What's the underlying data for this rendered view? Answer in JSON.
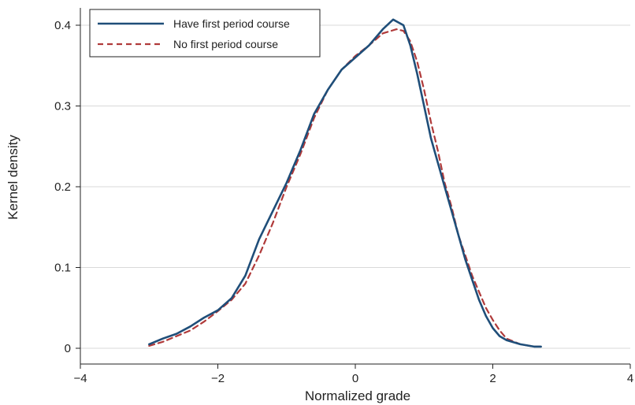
{
  "chart_data": {
    "type": "line",
    "title": "",
    "xlabel": "Normalized grade",
    "ylabel": "Kernel density",
    "xlim": [
      -4,
      4
    ],
    "ylim": [
      0,
      0.4
    ],
    "x_ticks": [
      -4,
      -2,
      0,
      2,
      4
    ],
    "x_tick_labels": [
      "−4",
      "−2",
      "0",
      "2",
      "4"
    ],
    "y_ticks": [
      0,
      0.1,
      0.2,
      0.3,
      0.4
    ],
    "y_tick_labels": [
      "0",
      "0.1",
      "0.2",
      "0.3",
      "0.4"
    ],
    "grid": "horizontal",
    "legend_position": "top-left",
    "series": [
      {
        "name": "Have first period course",
        "color": "#1f4e79",
        "dash": "solid",
        "points": [
          [
            -3.0,
            0.005
          ],
          [
            -2.8,
            0.012
          ],
          [
            -2.6,
            0.018
          ],
          [
            -2.4,
            0.027
          ],
          [
            -2.2,
            0.038
          ],
          [
            -2.0,
            0.047
          ],
          [
            -1.8,
            0.062
          ],
          [
            -1.6,
            0.09
          ],
          [
            -1.4,
            0.135
          ],
          [
            -1.2,
            0.17
          ],
          [
            -1.0,
            0.205
          ],
          [
            -0.8,
            0.245
          ],
          [
            -0.6,
            0.29
          ],
          [
            -0.4,
            0.32
          ],
          [
            -0.2,
            0.345
          ],
          [
            0.0,
            0.36
          ],
          [
            0.2,
            0.375
          ],
          [
            0.4,
            0.395
          ],
          [
            0.55,
            0.407
          ],
          [
            0.7,
            0.4
          ],
          [
            0.8,
            0.375
          ],
          [
            0.9,
            0.34
          ],
          [
            1.0,
            0.3
          ],
          [
            1.1,
            0.26
          ],
          [
            1.2,
            0.23
          ],
          [
            1.3,
            0.2
          ],
          [
            1.4,
            0.17
          ],
          [
            1.5,
            0.14
          ],
          [
            1.6,
            0.11
          ],
          [
            1.7,
            0.085
          ],
          [
            1.8,
            0.06
          ],
          [
            1.9,
            0.04
          ],
          [
            2.0,
            0.025
          ],
          [
            2.1,
            0.015
          ],
          [
            2.2,
            0.01
          ],
          [
            2.4,
            0.005
          ],
          [
            2.6,
            0.002
          ],
          [
            2.7,
            0.002
          ]
        ]
      },
      {
        "name": "No first period course",
        "color": "#b03a3a",
        "dash": "dashed",
        "points": [
          [
            -3.0,
            0.003
          ],
          [
            -2.8,
            0.008
          ],
          [
            -2.6,
            0.015
          ],
          [
            -2.4,
            0.022
          ],
          [
            -2.2,
            0.033
          ],
          [
            -2.0,
            0.046
          ],
          [
            -1.8,
            0.06
          ],
          [
            -1.6,
            0.08
          ],
          [
            -1.4,
            0.115
          ],
          [
            -1.2,
            0.155
          ],
          [
            -1.0,
            0.2
          ],
          [
            -0.8,
            0.24
          ],
          [
            -0.6,
            0.285
          ],
          [
            -0.4,
            0.32
          ],
          [
            -0.2,
            0.345
          ],
          [
            0.0,
            0.362
          ],
          [
            0.2,
            0.375
          ],
          [
            0.4,
            0.39
          ],
          [
            0.6,
            0.395
          ],
          [
            0.7,
            0.393
          ],
          [
            0.8,
            0.38
          ],
          [
            0.9,
            0.355
          ],
          [
            1.0,
            0.32
          ],
          [
            1.1,
            0.28
          ],
          [
            1.2,
            0.245
          ],
          [
            1.3,
            0.205
          ],
          [
            1.4,
            0.175
          ],
          [
            1.5,
            0.14
          ],
          [
            1.6,
            0.115
          ],
          [
            1.7,
            0.09
          ],
          [
            1.8,
            0.07
          ],
          [
            1.9,
            0.05
          ],
          [
            2.0,
            0.035
          ],
          [
            2.1,
            0.022
          ],
          [
            2.2,
            0.012
          ],
          [
            2.4,
            0.005
          ],
          [
            2.6,
            0.002
          ],
          [
            2.7,
            0.002
          ]
        ]
      }
    ]
  }
}
